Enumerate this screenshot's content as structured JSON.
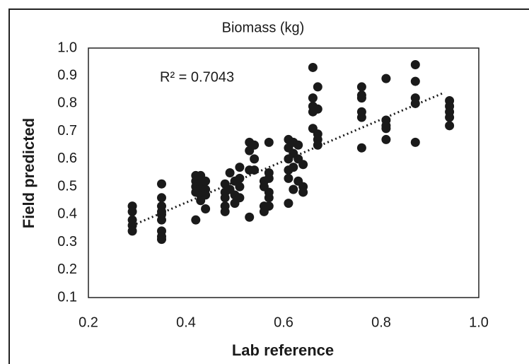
{
  "chart_data": {
    "type": "scatter",
    "title": "Biomass (kg)",
    "x_label": "Lab reference",
    "y_label": "Field predicted",
    "annotation": "R² = 0.7043",
    "color": "#1a1a1a",
    "x": [
      0.29,
      0.29,
      0.29,
      0.29,
      0.29,
      0.35,
      0.35,
      0.35,
      0.35,
      0.35,
      0.35,
      0.35,
      0.35,
      0.35,
      0.42,
      0.42,
      0.42,
      0.42,
      0.42,
      0.43,
      0.43,
      0.43,
      0.43,
      0.43,
      0.44,
      0.44,
      0.44,
      0.44,
      0.48,
      0.48,
      0.48,
      0.48,
      0.48,
      0.49,
      0.49,
      0.5,
      0.5,
      0.5,
      0.51,
      0.51,
      0.51,
      0.51,
      0.53,
      0.53,
      0.53,
      0.53,
      0.54,
      0.54,
      0.54,
      0.57,
      0.57,
      0.56,
      0.56,
      0.57,
      0.56,
      0.56,
      0.57,
      0.57,
      0.57,
      0.61,
      0.61,
      0.61,
      0.61,
      0.61,
      0.61,
      0.62,
      0.62,
      0.62,
      0.62,
      0.63,
      0.63,
      0.63,
      0.64,
      0.64,
      0.64,
      0.66,
      0.66,
      0.66,
      0.66,
      0.66,
      0.67,
      0.67,
      0.67,
      0.67,
      0.67,
      0.76,
      0.76,
      0.76,
      0.76,
      0.76,
      0.76,
      0.81,
      0.81,
      0.81,
      0.81,
      0.81,
      0.87,
      0.87,
      0.87,
      0.87,
      0.87,
      0.94,
      0.94,
      0.94,
      0.94,
      0.94
    ],
    "y": [
      0.43,
      0.41,
      0.38,
      0.36,
      0.34,
      0.51,
      0.46,
      0.43,
      0.41,
      0.4,
      0.38,
      0.34,
      0.32,
      0.31,
      0.38,
      0.54,
      0.52,
      0.5,
      0.48,
      0.54,
      0.51,
      0.49,
      0.47,
      0.45,
      0.52,
      0.49,
      0.47,
      0.42,
      0.51,
      0.48,
      0.46,
      0.43,
      0.41,
      0.55,
      0.49,
      0.52,
      0.47,
      0.44,
      0.57,
      0.53,
      0.5,
      0.46,
      0.66,
      0.63,
      0.56,
      0.39,
      0.65,
      0.6,
      0.56,
      0.66,
      0.55,
      0.52,
      0.5,
      0.48,
      0.43,
      0.41,
      0.53,
      0.43,
      0.46,
      0.67,
      0.64,
      0.6,
      0.56,
      0.53,
      0.44,
      0.66,
      0.62,
      0.57,
      0.49,
      0.65,
      0.6,
      0.52,
      0.58,
      0.5,
      0.48,
      0.93,
      0.82,
      0.79,
      0.77,
      0.71,
      0.86,
      0.78,
      0.69,
      0.67,
      0.65,
      0.86,
      0.83,
      0.82,
      0.77,
      0.75,
      0.64,
      0.89,
      0.74,
      0.72,
      0.71,
      0.67,
      0.94,
      0.88,
      0.82,
      0.8,
      0.66,
      0.81,
      0.79,
      0.77,
      0.75,
      0.72
    ],
    "trendline": {
      "x": [
        0.29,
        0.93
      ],
      "y": [
        0.36,
        0.84
      ]
    },
    "xlim": [
      0.2,
      1.0
    ],
    "xticks": [
      0.2,
      0.4,
      0.6,
      0.8,
      {
        "value": 1.0,
        "label": "1.0"
      }
    ],
    "ylim": [
      0.1,
      1.0
    ],
    "yticks": [
      0.1,
      0.2,
      0.3,
      0.4,
      0.5,
      0.6,
      0.7,
      0.8,
      0.9,
      {
        "value": 1.0,
        "label": "1.0"
      }
    ],
    "grid": false
  }
}
